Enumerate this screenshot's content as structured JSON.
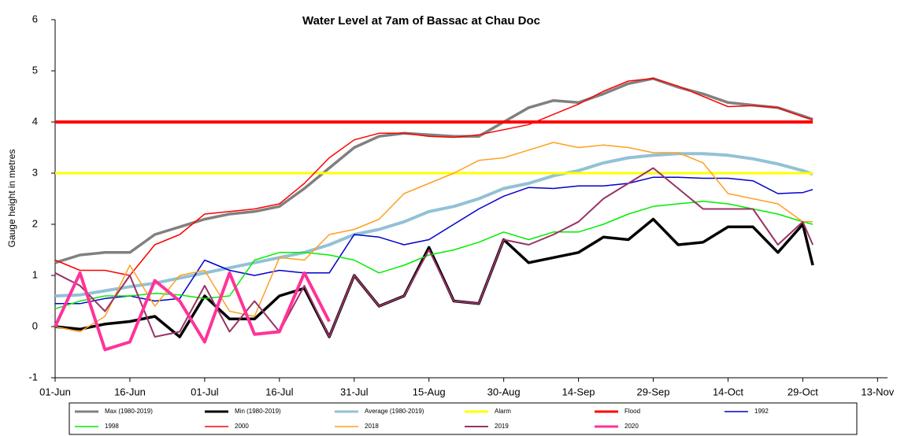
{
  "chart_data": {
    "type": "line",
    "title": "Water Level at 7am of Bassac at Chau Doc",
    "y_label": "Gauge height in metres",
    "xlim": [
      0,
      167
    ],
    "xticks": [
      {
        "value": 0,
        "label": "01-Jun"
      },
      {
        "value": 15,
        "label": "16-Jun"
      },
      {
        "value": 30,
        "label": "01-Jul"
      },
      {
        "value": 45,
        "label": "16-Jul"
      },
      {
        "value": 60,
        "label": "31-Jul"
      },
      {
        "value": 75,
        "label": "15-Aug"
      },
      {
        "value": 90,
        "label": "30-Aug"
      },
      {
        "value": 105,
        "label": "14-Sep"
      },
      {
        "value": 120,
        "label": "29-Sep"
      },
      {
        "value": 135,
        "label": "14-Oct"
      },
      {
        "value": 150,
        "label": "29-Oct"
      },
      {
        "value": 165,
        "label": "13-Nov"
      }
    ],
    "ylim": [
      -1,
      6
    ],
    "yticks": [
      -1,
      0,
      1,
      2,
      3,
      4,
      5,
      6
    ],
    "x": [
      0,
      5,
      10,
      15,
      20,
      25,
      30,
      35,
      40,
      45,
      50,
      55,
      60,
      65,
      70,
      75,
      80,
      85,
      90,
      95,
      100,
      105,
      110,
      115,
      120,
      125,
      130,
      135,
      140,
      145,
      150,
      152
    ],
    "series": [
      {
        "name": "Max (1980-2019)",
        "color": "#808080",
        "width": 3.5,
        "values": [
          1.25,
          1.4,
          1.45,
          1.45,
          1.8,
          1.95,
          2.1,
          2.2,
          2.25,
          2.35,
          2.7,
          3.1,
          3.5,
          3.72,
          3.78,
          3.75,
          3.72,
          3.72,
          4.0,
          4.28,
          4.42,
          4.38,
          4.55,
          4.75,
          4.85,
          4.68,
          4.55,
          4.38,
          4.33,
          4.28,
          4.12,
          4.05
        ]
      },
      {
        "name": "Min (1980-2019)",
        "color": "#000000",
        "width": 3.5,
        "values": [
          0.0,
          -0.05,
          0.05,
          0.1,
          0.2,
          -0.2,
          0.6,
          0.15,
          0.15,
          0.6,
          0.75,
          -0.2,
          1.0,
          0.4,
          0.6,
          1.55,
          0.5,
          0.45,
          1.7,
          1.25,
          1.35,
          1.45,
          1.75,
          1.7,
          2.1,
          1.6,
          1.65,
          1.95,
          1.95,
          1.45,
          2.0,
          1.2
        ]
      },
      {
        "name": "Average (1980-2019)",
        "color": "#93c1d6",
        "width": 4,
        "values": [
          0.6,
          0.62,
          0.7,
          0.78,
          0.85,
          0.95,
          1.05,
          1.15,
          1.25,
          1.35,
          1.45,
          1.6,
          1.8,
          1.9,
          2.05,
          2.25,
          2.35,
          2.5,
          2.7,
          2.8,
          2.95,
          3.05,
          3.2,
          3.3,
          3.35,
          3.38,
          3.38,
          3.35,
          3.28,
          3.18,
          3.05,
          2.98
        ]
      },
      {
        "name": "Alarm",
        "color": "#ffff00",
        "width": 3,
        "values": [
          3,
          3,
          3,
          3,
          3,
          3,
          3,
          3,
          3,
          3,
          3,
          3,
          3,
          3,
          3,
          3,
          3,
          3,
          3,
          3,
          3,
          3,
          3,
          3,
          3,
          3,
          3,
          3,
          3,
          3,
          3,
          3
        ]
      },
      {
        "name": "Flood",
        "color": "#ff0000",
        "width": 4,
        "values": [
          4,
          4,
          4,
          4,
          4,
          4,
          4,
          4,
          4,
          4,
          4,
          4,
          4,
          4,
          4,
          4,
          4,
          4,
          4,
          4,
          4,
          4,
          4,
          4,
          4,
          4,
          4,
          4,
          4,
          4,
          4,
          4
        ]
      },
      {
        "name": "1992",
        "color": "#0000cc",
        "width": 1.5,
        "values": [
          0.45,
          0.45,
          0.55,
          0.6,
          0.5,
          0.55,
          1.3,
          1.1,
          1.0,
          1.1,
          1.05,
          1.05,
          1.8,
          1.75,
          1.6,
          1.7,
          2.0,
          2.3,
          2.55,
          2.72,
          2.7,
          2.75,
          2.75,
          2.8,
          2.92,
          2.92,
          2.9,
          2.9,
          2.85,
          2.6,
          2.62,
          2.68
        ]
      },
      {
        "name": "1998",
        "color": "#00ee00",
        "width": 1.5,
        "values": [
          0.35,
          0.5,
          0.6,
          0.6,
          0.65,
          0.62,
          0.55,
          0.6,
          1.3,
          1.45,
          1.45,
          1.4,
          1.3,
          1.05,
          1.2,
          1.4,
          1.5,
          1.65,
          1.85,
          1.7,
          1.85,
          1.85,
          2.0,
          2.2,
          2.35,
          2.4,
          2.45,
          2.4,
          2.3,
          2.2,
          2.05,
          2.0
        ]
      },
      {
        "name": "2000",
        "color": "#ff0000",
        "width": 1.5,
        "values": [
          1.3,
          1.1,
          1.1,
          1.0,
          1.6,
          1.8,
          2.2,
          2.25,
          2.3,
          2.4,
          2.8,
          3.3,
          3.65,
          3.78,
          3.78,
          3.72,
          3.7,
          3.75,
          3.85,
          3.95,
          4.15,
          4.35,
          4.6,
          4.8,
          4.85,
          4.7,
          4.5,
          4.3,
          4.32,
          4.28,
          4.1,
          4.05
        ]
      },
      {
        "name": "2018",
        "color": "#ffa020",
        "width": 1.5,
        "values": [
          0.0,
          -0.1,
          0.2,
          1.2,
          0.4,
          1.0,
          1.1,
          0.3,
          0.2,
          1.35,
          1.3,
          1.8,
          1.9,
          2.1,
          2.6,
          2.8,
          3.0,
          3.25,
          3.3,
          3.45,
          3.6,
          3.5,
          3.55,
          3.5,
          3.4,
          3.4,
          3.2,
          2.6,
          2.5,
          2.4,
          2.05,
          2.05
        ]
      },
      {
        "name": "2019",
        "color": "#993366",
        "width": 2,
        "values": [
          1.05,
          0.8,
          0.3,
          1.0,
          -0.2,
          -0.1,
          0.8,
          -0.1,
          0.5,
          -0.1,
          0.8,
          -0.2,
          1.0,
          0.4,
          0.6,
          1.5,
          0.5,
          0.45,
          1.7,
          1.6,
          1.8,
          2.05,
          2.5,
          2.8,
          3.1,
          2.7,
          2.3,
          2.3,
          2.3,
          1.6,
          2.05,
          1.6
        ]
      },
      {
        "name": "2020",
        "color": "#ff3399",
        "width": 4,
        "values": [
          0.0,
          1.05,
          -0.45,
          -0.3,
          0.9,
          0.5,
          -0.3,
          1.05,
          -0.15,
          -0.1,
          1.05,
          0.1,
          null,
          null,
          null,
          null,
          null,
          null,
          null,
          null,
          null,
          null,
          null,
          null,
          null,
          null,
          null,
          null,
          null,
          null,
          null,
          null
        ]
      }
    ]
  }
}
